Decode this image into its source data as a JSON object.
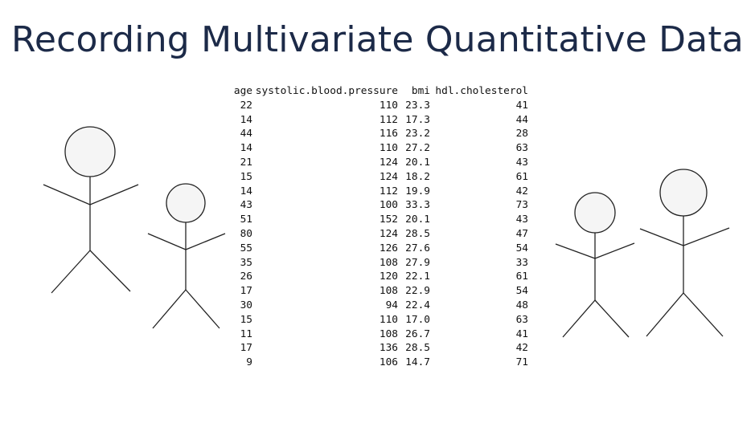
{
  "slide": {
    "title": "Recording Multivariate Quantitative Data"
  },
  "table": {
    "headers": [
      "age",
      "systolic.blood.pressure",
      "bmi",
      "hdl.cholesterol"
    ],
    "rows": [
      [
        "22",
        "110",
        "23.3",
        "41"
      ],
      [
        "14",
        "112",
        "17.3",
        "44"
      ],
      [
        "44",
        "116",
        "23.2",
        "28"
      ],
      [
        "14",
        "110",
        "27.2",
        "63"
      ],
      [
        "21",
        "124",
        "20.1",
        "43"
      ],
      [
        "15",
        "124",
        "18.2",
        "61"
      ],
      [
        "14",
        "112",
        "19.9",
        "42"
      ],
      [
        "43",
        "100",
        "33.3",
        "73"
      ],
      [
        "51",
        "152",
        "20.1",
        "43"
      ],
      [
        "80",
        "124",
        "28.5",
        "47"
      ],
      [
        "55",
        "126",
        "27.6",
        "54"
      ],
      [
        "35",
        "108",
        "27.9",
        "33"
      ],
      [
        "26",
        "120",
        "22.1",
        "61"
      ],
      [
        "17",
        "108",
        "22.9",
        "54"
      ],
      [
        "30",
        "94",
        "22.4",
        "48"
      ],
      [
        "15",
        "110",
        "17.0",
        "63"
      ],
      [
        "11",
        "108",
        "26.7",
        "41"
      ],
      [
        "17",
        "136",
        "28.5",
        "42"
      ],
      [
        "9",
        "106",
        "14.7",
        "71"
      ]
    ]
  },
  "figures": [
    "stick-figure",
    "stick-figure",
    "stick-figure",
    "stick-figure"
  ]
}
